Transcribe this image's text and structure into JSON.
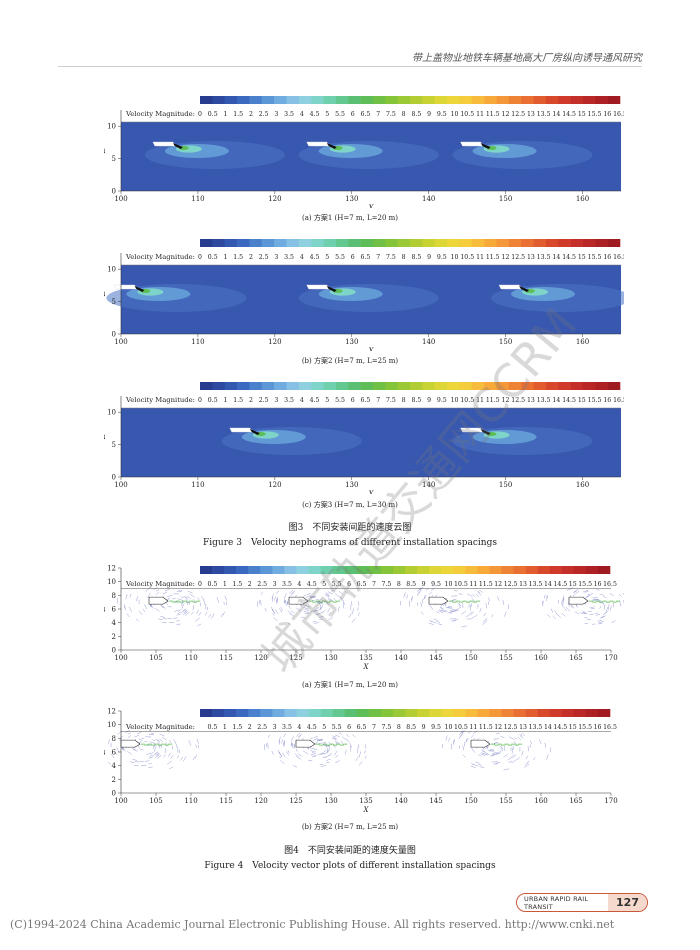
{
  "header": {
    "running_title": "带上盖物业地铁车辆基地高大厂房纵向诱导通风研究"
  },
  "legend": {
    "label": "Velocity Magnitude:",
    "ticks": [
      "0",
      "0.5",
      "1",
      "1.5",
      "2",
      "2.5",
      "3",
      "3.5",
      "4",
      "4.5",
      "5",
      "5.5",
      "6",
      "6.5",
      "7",
      "7.5",
      "8",
      "8.5",
      "9",
      "9.5",
      "10",
      "10.5",
      "11",
      "11.5",
      "12",
      "12.5",
      "13",
      "13.5",
      "14",
      "14.5",
      "15",
      "15.5",
      "16",
      "16.5"
    ],
    "colors": [
      "#283c8f",
      "#2d4aa0",
      "#3258b0",
      "#3a69bf",
      "#4a80cc",
      "#5b96d6",
      "#70acdf",
      "#86c0e5",
      "#8fd0e0",
      "#7fd4c9",
      "#6fd0ad",
      "#62c88f",
      "#5abf72",
      "#5ebd57",
      "#6fc044",
      "#84c438",
      "#9bc935",
      "#b2cd33",
      "#c8d233",
      "#dcd636",
      "#ecd63a",
      "#f4cc3c",
      "#f7bc3c",
      "#f7aa3a",
      "#f49738",
      "#ef8335",
      "#e96f32",
      "#e15c2f",
      "#d8492c",
      "#cf3a2a",
      "#c52f29",
      "#b92727",
      "#ad2024",
      "#a01a22"
    ]
  },
  "figure3": {
    "title_cn": "图3　不同安装间距的速度云图",
    "title_en": "Figure 3　Velocity nephograms of different installation spacings",
    "y_label": "Z",
    "x_label": "X",
    "x_ticks": [
      "100",
      "110",
      "120",
      "130",
      "140",
      "150",
      "160"
    ],
    "y_ticks": [
      "0",
      "5",
      "10"
    ],
    "panels": [
      {
        "caption": "(a) 方案1 (H=7 m, L=20 m)",
        "fans_x": [
          107,
          127,
          147
        ]
      },
      {
        "caption": "(b) 方案2 (H=7 m, L=25 m)",
        "fans_x": [
          102,
          127,
          152
        ]
      },
      {
        "caption": "(c) 方案3 (H=7 m, L=30 m)",
        "fans_x": [
          117,
          147
        ]
      }
    ]
  },
  "figure4": {
    "title_cn": "图4　不同安装间距的速度矢量图",
    "title_en": "Figure 4　Velocity vector plots of different installation spacings",
    "y_label": "Z",
    "x_label": "X",
    "x_ticks": [
      "100",
      "105",
      "110",
      "115",
      "120",
      "125",
      "130",
      "135",
      "140",
      "145",
      "150",
      "155",
      "160",
      "165",
      "170"
    ],
    "y_ticks": [
      "0",
      "2",
      "4",
      "6",
      "8",
      "10",
      "12"
    ],
    "panels": [
      {
        "caption": "(a) 方案1 (H=7 m, L=20 m)",
        "fans_x": [
          106,
          126,
          146,
          166
        ]
      },
      {
        "caption": "(b) 方案2 (H=7 m, L=25 m)",
        "fans_x": [
          102,
          127,
          152
        ]
      }
    ]
  },
  "watermark": "城市轨道交通网CCRM",
  "footer": {
    "journal": "URBAN RAPID RAIL TRANSIT",
    "page": "127",
    "copyright": "(C)1994-2024 China Academic Journal Electronic Publishing House. All rights reserved.    http://www.cnki.net"
  }
}
